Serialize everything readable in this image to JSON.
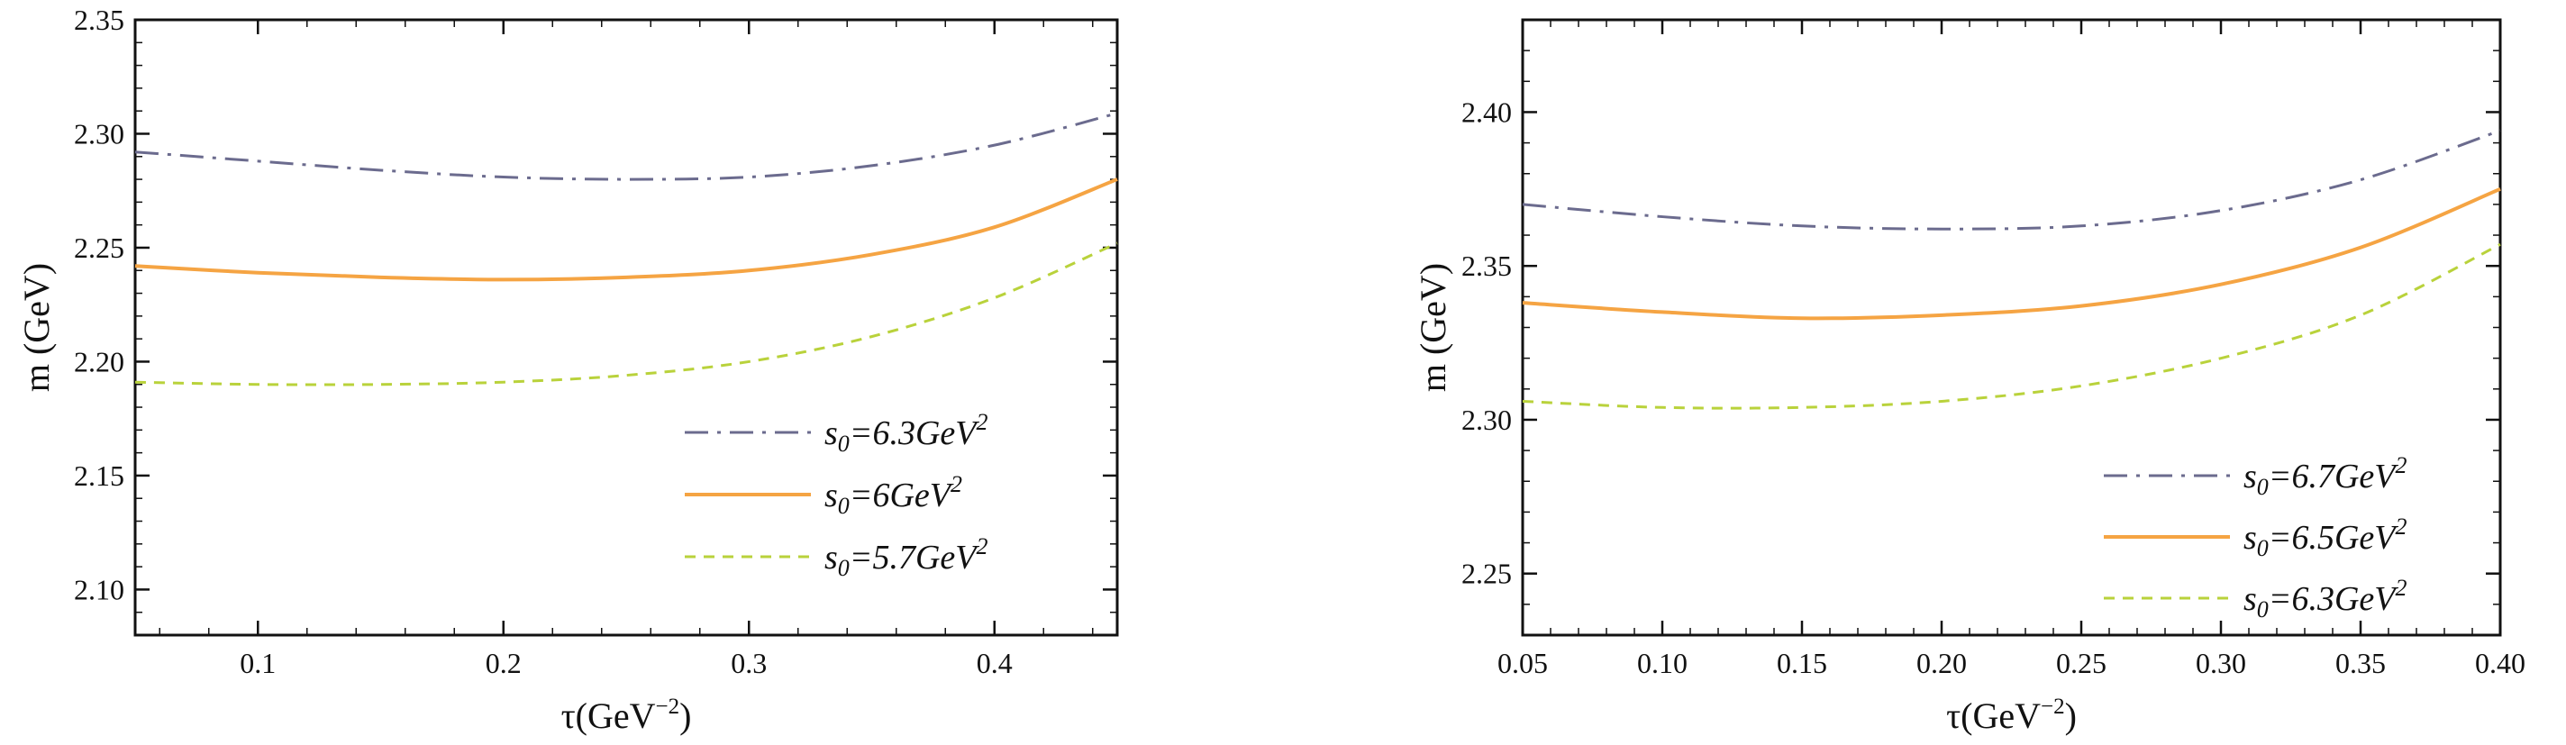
{
  "chart_data": [
    {
      "type": "line",
      "xlabel": "τ(GeV",
      "xlabel_sup": "−2",
      "xlabel_tail": ")",
      "ylabel": "m (GeV)",
      "xlim": [
        0.05,
        0.45
      ],
      "ylim": [
        2.08,
        2.35
      ],
      "xticks": [
        0.1,
        0.2,
        0.3,
        0.4
      ],
      "xtick_labels": [
        "0.1",
        "0.2",
        "0.3",
        "0.4"
      ],
      "yticks": [
        2.1,
        2.15,
        2.2,
        2.25,
        2.3,
        2.35
      ],
      "ytick_labels": [
        "2.10",
        "2.15",
        "2.20",
        "2.25",
        "2.30",
        "2.35"
      ],
      "grid": false,
      "legend_position": "bottom-right",
      "series": [
        {
          "name": "s0=6.3GeV2",
          "legend_main": "s",
          "legend_sub": "0",
          "legend_rest": "=6.3GeV",
          "legend_sup": "2",
          "style": "dash-dot",
          "color": "#6b6b8e",
          "x": [
            0.05,
            0.1,
            0.15,
            0.2,
            0.25,
            0.3,
            0.35,
            0.4,
            0.45
          ],
          "y": [
            2.292,
            2.288,
            2.284,
            2.281,
            2.28,
            2.281,
            2.286,
            2.295,
            2.309
          ]
        },
        {
          "name": "s0=6GeV2",
          "legend_main": "s",
          "legend_sub": "0",
          "legend_rest": "=6GeV",
          "legend_sup": "2",
          "style": "solid",
          "color": "#f5a443",
          "x": [
            0.05,
            0.1,
            0.15,
            0.2,
            0.25,
            0.3,
            0.35,
            0.4,
            0.45
          ],
          "y": [
            2.242,
            2.239,
            2.237,
            2.236,
            2.237,
            2.24,
            2.247,
            2.259,
            2.28
          ]
        },
        {
          "name": "s0=5.7GeV2",
          "legend_main": "s",
          "legend_sub": "0",
          "legend_rest": "=5.7GeV",
          "legend_sup": "2",
          "style": "dashed",
          "color": "#b9d23b",
          "x": [
            0.05,
            0.1,
            0.15,
            0.2,
            0.25,
            0.3,
            0.35,
            0.4,
            0.45
          ],
          "y": [
            2.191,
            2.19,
            2.19,
            2.191,
            2.194,
            2.2,
            2.211,
            2.228,
            2.252
          ]
        }
      ]
    },
    {
      "type": "line",
      "xlabel": "τ(GeV",
      "xlabel_sup": "−2",
      "xlabel_tail": ")",
      "ylabel": "m (GeV)",
      "xlim": [
        0.05,
        0.4
      ],
      "ylim": [
        2.23,
        2.43
      ],
      "xticks": [
        0.05,
        0.1,
        0.15,
        0.2,
        0.25,
        0.3,
        0.35,
        0.4
      ],
      "xtick_labels": [
        "0.05",
        "0.10",
        "0.15",
        "0.20",
        "0.25",
        "0.30",
        "0.35",
        "0.40"
      ],
      "yticks": [
        2.25,
        2.3,
        2.35,
        2.4
      ],
      "ytick_labels": [
        "2.25",
        "2.30",
        "2.35",
        "2.40"
      ],
      "grid": false,
      "legend_position": "bottom-right",
      "series": [
        {
          "name": "s0=6.7GeV2",
          "legend_main": "s",
          "legend_sub": "0",
          "legend_rest": "=6.7GeV",
          "legend_sup": "2",
          "style": "dash-dot",
          "color": "#6b6b8e",
          "x": [
            0.05,
            0.1,
            0.15,
            0.2,
            0.25,
            0.3,
            0.35,
            0.4
          ],
          "y": [
            2.37,
            2.366,
            2.363,
            2.362,
            2.363,
            2.368,
            2.378,
            2.394
          ]
        },
        {
          "name": "s0=6.5GeV2",
          "legend_main": "s",
          "legend_sub": "0",
          "legend_rest": "=6.5GeV",
          "legend_sup": "2",
          "style": "solid",
          "color": "#f5a443",
          "x": [
            0.05,
            0.1,
            0.15,
            0.2,
            0.25,
            0.3,
            0.35,
            0.4
          ],
          "y": [
            2.338,
            2.335,
            2.333,
            2.334,
            2.337,
            2.344,
            2.356,
            2.375
          ]
        },
        {
          "name": "s0=6.3GeV2",
          "legend_main": "s",
          "legend_sub": "0",
          "legend_rest": "=6.3GeV",
          "legend_sup": "2",
          "style": "dashed",
          "color": "#b9d23b",
          "x": [
            0.05,
            0.1,
            0.15,
            0.2,
            0.25,
            0.3,
            0.35,
            0.4
          ],
          "y": [
            2.306,
            2.304,
            2.304,
            2.306,
            2.311,
            2.32,
            2.334,
            2.357
          ]
        }
      ]
    }
  ]
}
